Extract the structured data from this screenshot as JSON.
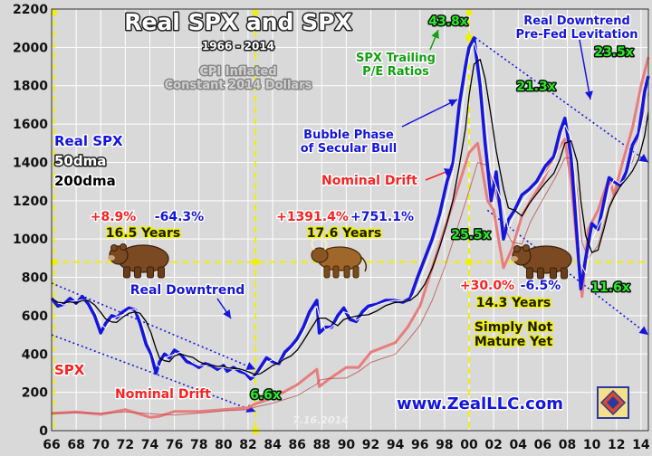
{
  "chart_data": {
    "type": "line",
    "title": "Real SPX and SPX",
    "subtitle": "1966 - 2014",
    "note": "CPI Inflated\nConstant 2014 Dollars",
    "x_tick_labels": [
      "66",
      "68",
      "70",
      "72",
      "74",
      "76",
      "78",
      "80",
      "82",
      "84",
      "86",
      "88",
      "90",
      "92",
      "94",
      "96",
      "98",
      "00",
      "02",
      "04",
      "06",
      "08",
      "10",
      "12",
      "14"
    ],
    "xlim": [
      1966,
      2014.6
    ],
    "ylim": [
      0,
      2200
    ],
    "y_ticks": [
      0,
      200,
      400,
      600,
      800,
      1000,
      1200,
      1400,
      1600,
      1800,
      2000,
      2200
    ],
    "grid": true,
    "legend": [
      {
        "label": "Real SPX",
        "color": "#1515e0"
      },
      {
        "label": "50dma",
        "color": "#ffffff"
      },
      {
        "label": "200dma",
        "color": "#000000"
      }
    ],
    "series": [
      {
        "name": "Real SPX",
        "color": "#1515e0",
        "x": [
          1966.0,
          1966.5,
          1967.0,
          1967.5,
          1968.0,
          1968.5,
          1969.0,
          1969.5,
          1970.0,
          1970.4,
          1970.9,
          1971.3,
          1971.8,
          1972.3,
          1972.8,
          1973.2,
          1973.7,
          1974.1,
          1974.5,
          1974.8,
          1975.2,
          1975.6,
          1976.0,
          1976.5,
          1977.0,
          1977.5,
          1978.0,
          1978.5,
          1979.0,
          1979.5,
          1980.0,
          1980.3,
          1980.8,
          1981.3,
          1981.8,
          1982.2,
          1982.6,
          1983.0,
          1983.5,
          1984.0,
          1984.5,
          1985.0,
          1985.5,
          1986.0,
          1986.5,
          1987.0,
          1987.6,
          1987.8,
          1988.3,
          1988.8,
          1989.3,
          1989.8,
          1990.3,
          1990.8,
          1991.3,
          1991.8,
          1992.5,
          1993.2,
          1993.9,
          1994.6,
          1995.2,
          1995.8,
          1996.4,
          1997.0,
          1997.6,
          1998.2,
          1998.7,
          1999.2,
          1999.7,
          2000.0,
          2000.4,
          2000.9,
          2001.3,
          2001.8,
          2002.2,
          2002.8,
          2003.2,
          2003.7,
          2004.3,
          2004.9,
          2005.5,
          2006.2,
          2006.9,
          2007.4,
          2007.8,
          2008.3,
          2008.8,
          2009.1,
          2009.5,
          2010.0,
          2010.5,
          2011.0,
          2011.4,
          2011.8,
          2012.3,
          2012.8,
          2013.3,
          2013.8,
          2014.3,
          2014.6
        ],
        "y": [
          690,
          650,
          660,
          690,
          665,
          700,
          660,
          600,
          510,
          560,
          600,
          590,
          620,
          640,
          630,
          560,
          450,
          400,
          300,
          360,
          400,
          380,
          420,
          400,
          360,
          350,
          330,
          350,
          340,
          320,
          340,
          310,
          330,
          310,
          300,
          270,
          290,
          330,
          380,
          360,
          350,
          410,
          440,
          480,
          540,
          620,
          680,
          510,
          540,
          540,
          600,
          640,
          580,
          570,
          620,
          650,
          660,
          680,
          680,
          670,
          690,
          800,
          900,
          1000,
          1130,
          1300,
          1400,
          1700,
          1900,
          2000,
          2050,
          1800,
          1500,
          1200,
          1350,
          1000,
          1100,
          1150,
          1230,
          1260,
          1300,
          1380,
          1430,
          1560,
          1630,
          1430,
          1000,
          740,
          900,
          1080,
          1050,
          1200,
          1320,
          1300,
          1280,
          1350,
          1490,
          1550,
          1770,
          1850
        ]
      },
      {
        "name": "SPX",
        "color": "#e87d7d",
        "x": [
          1966.0,
          1968.0,
          1970.0,
          1972.0,
          1974.0,
          1974.8,
          1976.0,
          1978.0,
          1980.0,
          1982.0,
          1982.6,
          1984.0,
          1986.0,
          1987.6,
          1987.8,
          1988.5,
          1990.0,
          1991.0,
          1992.0,
          1994.0,
          1995.0,
          1996.0,
          1997.0,
          1998.0,
          1999.0,
          2000.0,
          2000.7,
          2001.5,
          2002.0,
          2002.8,
          2003.5,
          2004.3,
          2005.0,
          2006.0,
          2007.0,
          2007.8,
          2008.3,
          2008.8,
          2009.2,
          2009.7,
          2010.5,
          2011.4,
          2011.8,
          2012.5,
          2013.3,
          2014.0,
          2014.6
        ],
        "y": [
          90,
          98,
          85,
          110,
          70,
          75,
          100,
          100,
          110,
          120,
          140,
          170,
          240,
          320,
          230,
          265,
          330,
          330,
          410,
          460,
          540,
          650,
          850,
          1050,
          1250,
          1450,
          1500,
          1200,
          1150,
          850,
          950,
          1120,
          1200,
          1300,
          1450,
          1520,
          1300,
          950,
          700,
          1050,
          1150,
          1320,
          1230,
          1400,
          1580,
          1800,
          1950
        ]
      }
    ],
    "trendlines": [
      {
        "name": "Real Downtrend upper",
        "from": [
          1966,
          770
        ],
        "to": [
          1982.6,
          320
        ]
      },
      {
        "name": "Real Downtrend lower",
        "from": [
          1966,
          500
        ],
        "to": [
          1982.6,
          100
        ]
      },
      {
        "name": "Real Downtrend Pre-Fed Levitation upper",
        "from": [
          2000.5,
          2050
        ],
        "to": [
          2014.6,
          1400
        ]
      },
      {
        "name": "Real Downtrend Pre-Fed Levitation lower",
        "from": [
          2001.5,
          1150
        ],
        "to": [
          2014.6,
          500
        ]
      }
    ],
    "reference_lines": [
      {
        "axis": "x",
        "value": 1966.2,
        "color": "#f0f000"
      },
      {
        "axis": "x",
        "value": 1982.6,
        "color": "#f0f000"
      },
      {
        "axis": "x",
        "value": 2000.0,
        "color": "#f0f000"
      },
      {
        "axis": "y",
        "value": 880,
        "color": "#f0f000"
      }
    ],
    "annotations": [
      {
        "text": "Real SPX",
        "color": "#1515e0",
        "stroke": "#ffffff"
      },
      {
        "text": "50dma",
        "color": "#ffffff",
        "stroke": "#222222"
      },
      {
        "text": "200dma",
        "color": "#000000",
        "stroke": "#ffffff"
      },
      {
        "text": "SPX",
        "color": "#ff2020",
        "stroke": "#ffffff"
      },
      {
        "text": "+8.9%",
        "color": "#ff2020",
        "stroke": "#ffffff"
      },
      {
        "text": "-64.3%",
        "color": "#1515e0",
        "stroke": "#ffffff"
      },
      {
        "text": "16.5 Years",
        "color": "#1a1a1a",
        "stroke": "#f0f000"
      },
      {
        "text": "+1391.4%",
        "color": "#ff2020",
        "stroke": "#ffffff"
      },
      {
        "text": "+751.1%",
        "color": "#1515e0",
        "stroke": "#ffffff"
      },
      {
        "text": "17.6 Years",
        "color": "#1a1a1a",
        "stroke": "#f0f000"
      },
      {
        "text": "+30.0%",
        "color": "#ff2020",
        "stroke": "#ffffff"
      },
      {
        "text": "-6.5%",
        "color": "#1515e0",
        "stroke": "#ffffff"
      },
      {
        "text": "14.3 Years",
        "color": "#1a1a1a",
        "stroke": "#f0f000"
      },
      {
        "text": "Real Downtrend",
        "color": "#1515e0",
        "stroke": "#ffffff"
      },
      {
        "text": "Nominal Drift",
        "color": "#ff2020",
        "stroke": "#ffffff"
      },
      {
        "text": "Nominal Drift",
        "color": "#ff2020",
        "stroke": "#ffffff"
      },
      {
        "text": "Bubble Phase\nof Secular Bull",
        "color": "#1515e0",
        "stroke": "#ffffff"
      },
      {
        "text": "SPX Trailing\nP/E Ratios",
        "color": "#11a011",
        "stroke": "#ffffff"
      },
      {
        "text": "Real Downtrend\nPre-Fed Levitation",
        "color": "#1515e0",
        "stroke": "#ffffff"
      },
      {
        "text": "Simply Not\nMature Yet",
        "color": "#1a1a1a",
        "stroke": "#f0f000"
      },
      {
        "text": "43.8x",
        "color": "#22ee22",
        "stroke": "#111111"
      },
      {
        "text": "21.3x",
        "color": "#22ee22",
        "stroke": "#111111"
      },
      {
        "text": "23.5x",
        "color": "#22ee22",
        "stroke": "#111111"
      },
      {
        "text": "25.5x",
        "color": "#22ee22",
        "stroke": "#111111"
      },
      {
        "text": "11.6x",
        "color": "#22ee22",
        "stroke": "#111111"
      },
      {
        "text": "6.6x",
        "color": "#22ee22",
        "stroke": "#111111"
      },
      {
        "text": "www.ZealLLC.com",
        "color": "#1515e0",
        "stroke": "#ffffff"
      },
      {
        "text": "7.16.2014",
        "color": "#f0f0f0",
        "stroke": "none"
      }
    ],
    "icons": [
      "bear-icon",
      "bull-icon",
      "bear-icon",
      "zeal-logo-icon"
    ]
  },
  "colors": {
    "background": "#d9d9d9",
    "grid": "#ffffff",
    "reference": "#f0f000",
    "trend": "#1515e0"
  }
}
